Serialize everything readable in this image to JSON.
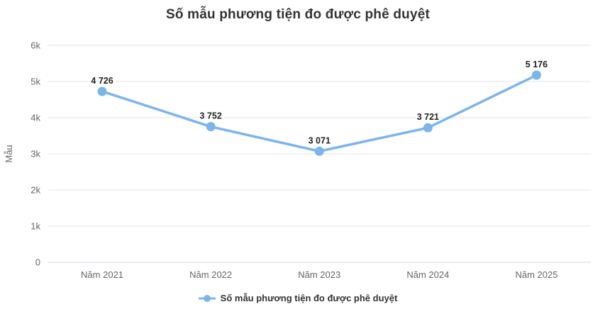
{
  "chart_data": {
    "type": "line",
    "title": "Số mẫu phương tiện đo được phê duyệt",
    "ylabel": "Mẫu",
    "categories": [
      "Năm 2021",
      "Năm 2022",
      "Năm 2023",
      "Năm 2024",
      "Năm 2025"
    ],
    "series": [
      {
        "name": "Số mẫu phương tiện đo được phê duyệt",
        "values": [
          4726,
          3752,
          3071,
          3721,
          5176
        ],
        "labels": [
          "4 726",
          "3 752",
          "3 071",
          "3 721",
          "5 176"
        ],
        "color": "#7cb5ec"
      }
    ],
    "ylim": [
      0,
      6000
    ],
    "ytick_interval": 1000,
    "ytick_labels": [
      "0",
      "1k",
      "2k",
      "3k",
      "4k",
      "5k",
      "6k"
    ],
    "grid": true,
    "legend_position": "bottom"
  },
  "colors": {
    "background": "#ffffff",
    "series": "#7cb5ec",
    "gridline": "#e6e6e6",
    "axis_line": "#ccd6eb",
    "axis_label": "#666666",
    "title": "#333333",
    "data_label": "#222222",
    "legend_label": "#333333"
  },
  "legend": {
    "label": "Số mẫu phương tiện đo được phê duyệt"
  }
}
